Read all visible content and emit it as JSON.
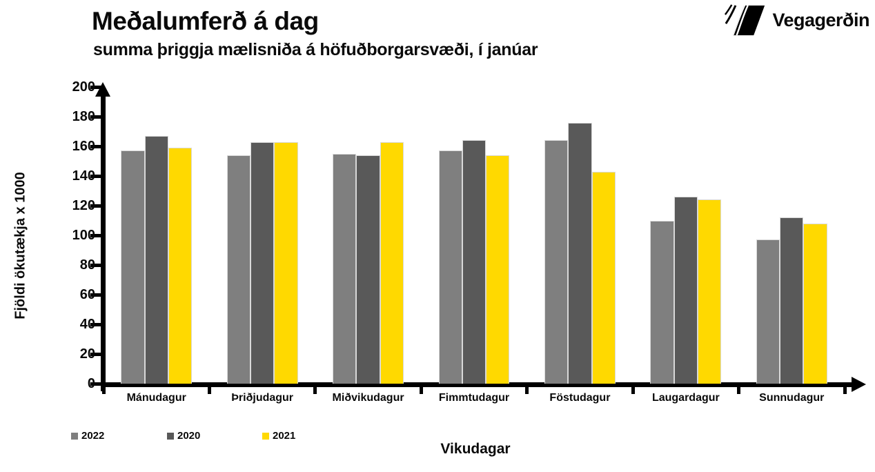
{
  "header": {
    "title": "Meðalumferð á dag",
    "subtitle": "summa þriggja mælisniða á höfuðborgarsvæði, í janúar"
  },
  "logo": {
    "text": "Vegagerðin",
    "icon": "vegagerdin-striped-road-mark"
  },
  "chart_data": {
    "type": "bar",
    "title": "Meðalumferð á dag",
    "subtitle": "summa þriggja mælisniða á höfuðborgarsvæði, í janúar",
    "categories": [
      "Mánudagur",
      "Þriðjudagur",
      "Miðvikudagur",
      "Fimmtudagur",
      "Föstudagur",
      "Laugardagur",
      "Sunnudagur"
    ],
    "series": [
      {
        "name": "2022",
        "color": "#7F7F7F",
        "values": [
          157,
          154,
          155,
          157,
          164,
          110,
          97
        ]
      },
      {
        "name": "2020",
        "color": "#595959",
        "values": [
          167,
          163,
          154,
          164,
          176,
          126,
          112
        ]
      },
      {
        "name": "2021",
        "color": "#FFD900",
        "values": [
          159,
          163,
          163,
          154,
          143,
          124,
          108
        ]
      }
    ],
    "xlabel": "Vikudagar",
    "ylabel": "Fjöldi ökutækja x 1000",
    "ylim": [
      0,
      200
    ],
    "yticks": [
      0,
      20,
      40,
      60,
      80,
      100,
      120,
      140,
      160,
      180,
      200
    ],
    "grid": false,
    "legend_position": "bottom-left",
    "axis_color": "#000000",
    "bar_border_color": "#D9D9D9"
  }
}
